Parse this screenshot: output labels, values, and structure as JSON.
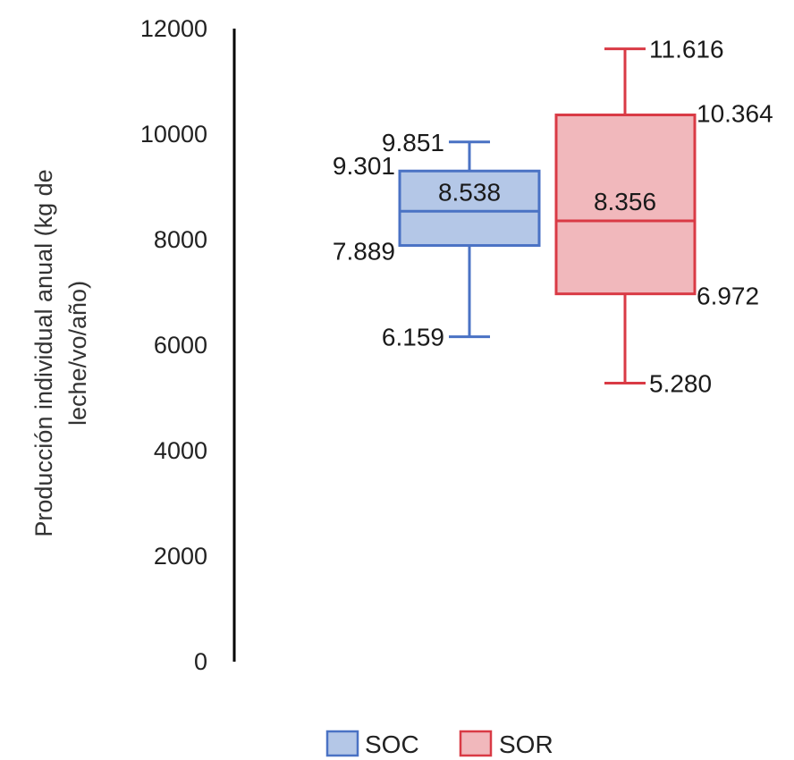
{
  "chart_data": {
    "type": "box",
    "ylabel_lines": [
      "Producción individual anual (kg de",
      "leche/vo/año)"
    ],
    "ylim": [
      0,
      12000
    ],
    "yticks": [
      0,
      2000,
      4000,
      6000,
      8000,
      10000,
      12000
    ],
    "ytick_labels": [
      "0",
      "2000",
      "4000",
      "6000",
      "8000",
      "10000",
      "12000"
    ],
    "legend_position": "bottom",
    "series": [
      {
        "name": "SOC",
        "color": "#4a72c4",
        "fill": "#b4c7e7",
        "min": 6159,
        "q1": 7889,
        "median": 8538,
        "q3": 9301,
        "max": 9851,
        "labels": {
          "min": "6.159",
          "q1": "7.889",
          "median": "8.538",
          "q3": "9.301",
          "max": "9.851"
        }
      },
      {
        "name": "SOR",
        "color": "#d93a45",
        "fill": "#f1b8bc",
        "min": 5280,
        "q1": 6972,
        "median": 8356,
        "q3": 10364,
        "max": 11616,
        "labels": {
          "min": "5.280",
          "q1": "6.972",
          "median": "8.356",
          "q3": "10.364",
          "max": "11.616"
        }
      }
    ]
  }
}
